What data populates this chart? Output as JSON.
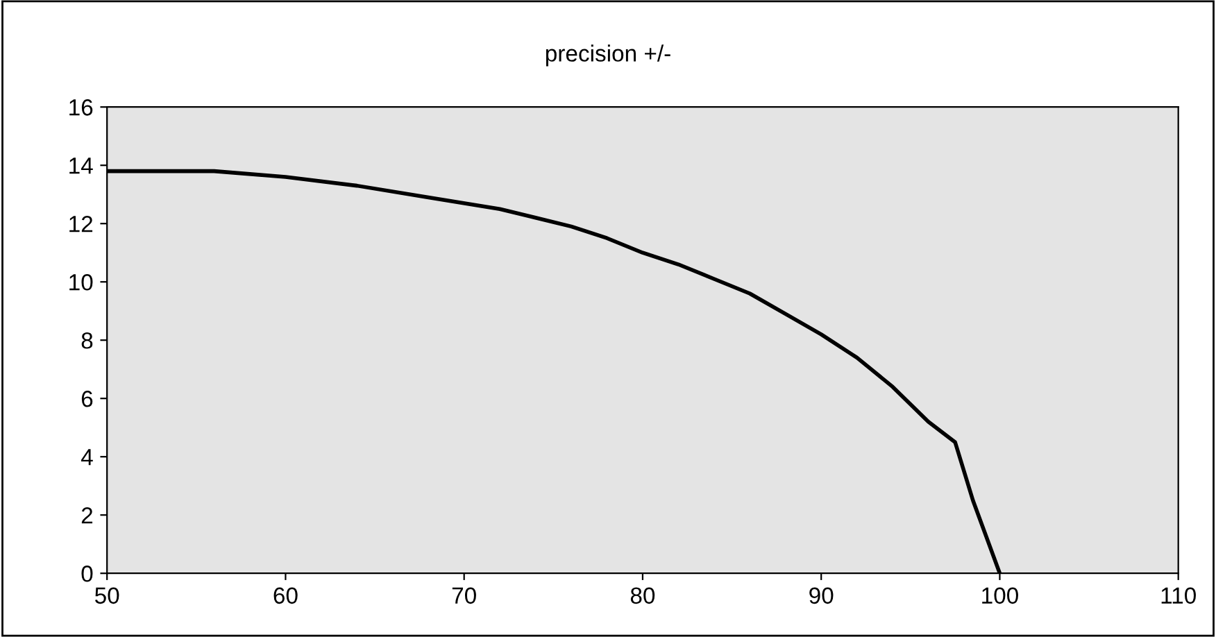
{
  "chart_data": {
    "type": "line",
    "title": "precision +/-",
    "x": [
      50,
      56,
      60,
      64,
      68,
      72,
      74,
      76,
      78,
      80,
      82,
      84,
      86,
      88,
      90,
      92,
      94,
      96,
      97.5,
      98.5,
      100
    ],
    "series": [
      {
        "color": "#000000",
        "values": [
          13.8,
          13.8,
          13.6,
          13.3,
          12.9,
          12.5,
          12.2,
          11.9,
          11.5,
          11.0,
          10.6,
          10.1,
          9.6,
          8.9,
          8.2,
          7.4,
          6.4,
          5.2,
          4.5,
          2.5,
          0
        ]
      }
    ],
    "xlim": [
      50,
      110
    ],
    "xticks": [
      50,
      60,
      70,
      80,
      90,
      100,
      110
    ],
    "ylim": [
      0,
      16
    ],
    "yticks": [
      0,
      2,
      4,
      6,
      8,
      10,
      12,
      14,
      16
    ],
    "grid": false,
    "marker": "none",
    "line_style": "solid"
  }
}
